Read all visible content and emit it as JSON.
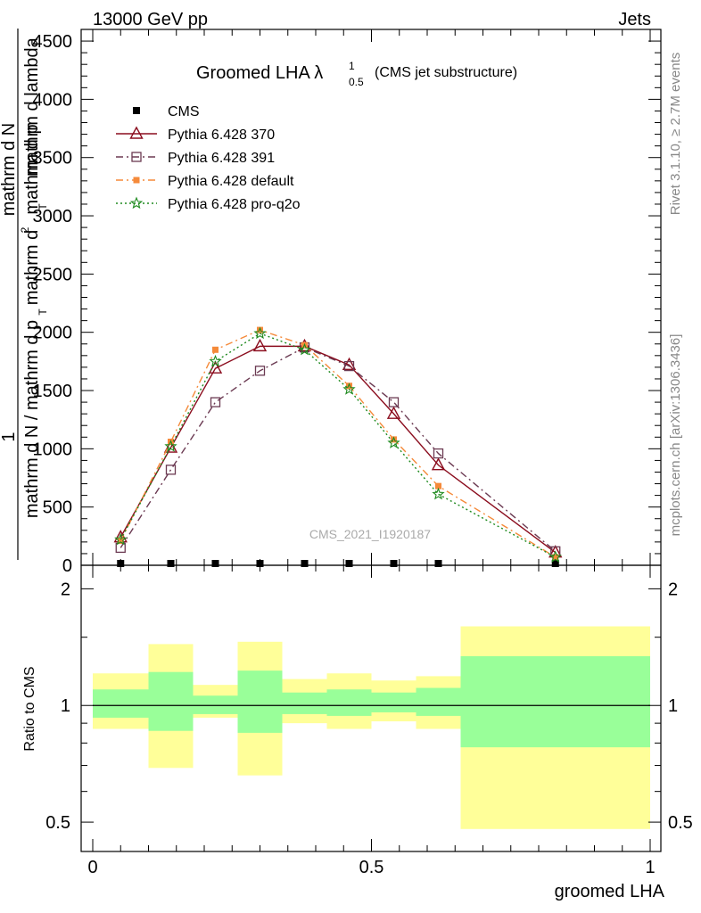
{
  "header": {
    "energy_label": "13000 GeV pp",
    "process_label": "Jets",
    "rivet_label": "Rivet 3.1.10, ≥ 2.7M events",
    "mcplots_label": "mcplots.cern.ch [arXiv:1306.3436]",
    "analysis_id": "CMS_2021_I1920187"
  },
  "colors": {
    "cms": "#000000",
    "p370": "#8b0d1e",
    "p391": "#6b3a52",
    "pdefault": "#f58a3a",
    "pq2o": "#1e8a1e",
    "band_inner": "#99ff99",
    "band_outer": "#ffff99"
  },
  "chart_data": [
    {
      "type": "line",
      "title": "Groomed LHA λ",
      "title_sup": "1",
      "title_sub": "0.5",
      "title_note": "(CMS jet substructure)",
      "ylabel_parts": [
        "1",
        "mathrm d N / mathrm d p",
        "T",
        "mathrm d",
        "2",
        "mathrm d N",
        "mathrm d p",
        "T",
        "mathrm d lambda"
      ],
      "xlim": [
        0,
        1
      ],
      "ylim": [
        0,
        4600
      ],
      "y_ticks": [
        "0",
        "500",
        "1000",
        "1500",
        "2000",
        "2500",
        "3000",
        "3500",
        "4000",
        "4500"
      ],
      "x_bin_edges": [
        0,
        0.1,
        0.18,
        0.26,
        0.34,
        0.42,
        0.5,
        0.58,
        0.66,
        1.0
      ],
      "series": [
        {
          "name": "CMS",
          "x": [
            0.05,
            0.14,
            0.22,
            0.3,
            0.38,
            0.46,
            0.54,
            0.62,
            0.83
          ],
          "values": [
            0,
            0,
            0,
            0,
            0,
            0,
            0,
            0,
            0
          ]
        },
        {
          "name": "Pythia 6.428 370",
          "x": [
            0.05,
            0.14,
            0.22,
            0.3,
            0.38,
            0.46,
            0.54,
            0.62,
            0.83
          ],
          "values": [
            240,
            1010,
            1690,
            1880,
            1880,
            1720,
            1300,
            860,
            110
          ]
        },
        {
          "name": "Pythia 6.428 391",
          "x": [
            0.05,
            0.14,
            0.22,
            0.3,
            0.38,
            0.46,
            0.54,
            0.62,
            0.83
          ],
          "values": [
            150,
            820,
            1400,
            1670,
            1870,
            1710,
            1400,
            960,
            120
          ]
        },
        {
          "name": "Pythia 6.428 default",
          "x": [
            0.05,
            0.14,
            0.22,
            0.3,
            0.38,
            0.46,
            0.54,
            0.62,
            0.83
          ],
          "values": [
            210,
            1060,
            1850,
            2020,
            1890,
            1540,
            1080,
            680,
            70
          ]
        },
        {
          "name": "Pythia 6.428 pro-q2o",
          "x": [
            0.05,
            0.14,
            0.22,
            0.3,
            0.38,
            0.46,
            0.54,
            0.62,
            0.83
          ],
          "values": [
            220,
            1020,
            1750,
            1990,
            1850,
            1510,
            1050,
            610,
            70
          ]
        }
      ]
    },
    {
      "type": "area",
      "ylabel": "Ratio to CMS",
      "xlabel": "groomed LHA",
      "xlim": [
        0,
        1
      ],
      "ylim": [
        0.42,
        2.3
      ],
      "x_ticks": [
        "0",
        "0.5",
        "1"
      ],
      "y_ticks": [
        "0.5",
        "1",
        "2"
      ],
      "x_bin_edges": [
        0,
        0.1,
        0.18,
        0.26,
        0.34,
        0.42,
        0.5,
        0.58,
        0.66,
        1.0
      ],
      "band_inner_low": [
        0.93,
        0.86,
        0.95,
        0.85,
        0.95,
        0.94,
        0.96,
        0.94,
        0.78
      ],
      "band_inner_high": [
        1.1,
        1.22,
        1.06,
        1.23,
        1.08,
        1.1,
        1.08,
        1.11,
        1.34
      ],
      "band_outer_low": [
        0.87,
        0.69,
        0.93,
        0.66,
        0.9,
        0.87,
        0.91,
        0.87,
        0.48
      ],
      "band_outer_high": [
        1.21,
        1.44,
        1.13,
        1.46,
        1.17,
        1.21,
        1.16,
        1.19,
        1.6
      ],
      "reference": 1
    }
  ]
}
